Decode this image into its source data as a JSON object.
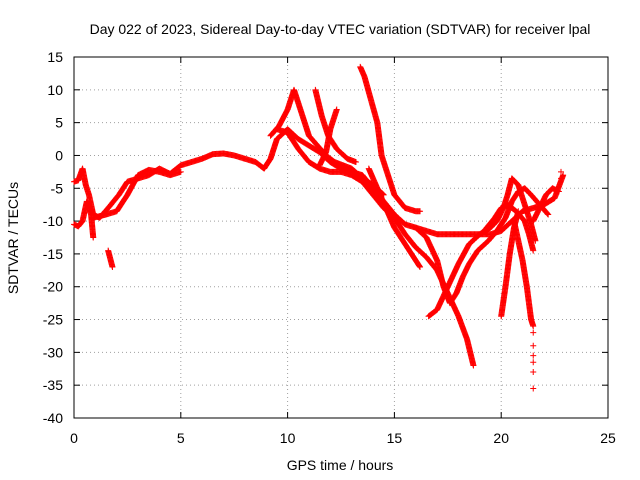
{
  "chart_data": {
    "type": "scatter",
    "title": "Day 022 of 2023, Sidereal Day-to-day VTEC variation (SDTVAR) for receiver lpal",
    "xlabel": "GPS time / hours",
    "ylabel": "SDTVAR / TECUs",
    "xlim": [
      0,
      25
    ],
    "ylim": [
      -40,
      15
    ],
    "xticks": [
      0,
      5,
      10,
      15,
      20,
      25
    ],
    "yticks": [
      -40,
      -35,
      -30,
      -25,
      -20,
      -15,
      -10,
      -5,
      0,
      5,
      10,
      15
    ],
    "grid": true,
    "marker": "+",
    "color": "#ff0000",
    "series": [
      {
        "tracks": [
          [
            [
              0.0,
              -4.0
            ],
            [
              0.2,
              -3.8
            ],
            [
              0.4,
              -2.0
            ],
            [
              0.55,
              -4.5
            ],
            [
              0.7,
              -6.0
            ],
            [
              0.9,
              -9.0
            ],
            [
              1.2,
              -9.5
            ],
            [
              1.6,
              -8.0
            ],
            [
              2.1,
              -6.0
            ],
            [
              2.5,
              -4.0
            ],
            [
              3.0,
              -3.5
            ],
            [
              3.5,
              -3.0
            ],
            [
              4.0,
              -2.0
            ],
            [
              4.5,
              -2.8
            ],
            [
              5.0,
              -1.5
            ],
            [
              5.5,
              -1.0
            ],
            [
              6.0,
              -0.5
            ],
            [
              6.5,
              0.2
            ],
            [
              7.0,
              0.3
            ],
            [
              7.5,
              0.0
            ],
            [
              8.0,
              -0.5
            ],
            [
              8.5,
              -1.0
            ],
            [
              8.9,
              -2.0
            ],
            [
              9.2,
              -0.5
            ],
            [
              9.5,
              2.5
            ],
            [
              10.0,
              4.0
            ],
            [
              10.5,
              2.5
            ],
            [
              11.0,
              1.5
            ],
            [
              11.5,
              0.5
            ],
            [
              12.0,
              -1.0
            ],
            [
              12.5,
              -2.0
            ],
            [
              13.0,
              -2.5
            ],
            [
              13.5,
              -3.0
            ],
            [
              14.0,
              -5.0
            ],
            [
              14.5,
              -7.0
            ],
            [
              15.0,
              -9.0
            ],
            [
              15.5,
              -10.5
            ],
            [
              16.0,
              -11.0
            ],
            [
              16.5,
              -11.5
            ],
            [
              17.0,
              -12.0
            ],
            [
              17.5,
              -12.0
            ],
            [
              18.0,
              -12.0
            ],
            [
              18.5,
              -12.0
            ],
            [
              19.0,
              -12.0
            ],
            [
              19.5,
              -12.0
            ],
            [
              20.0,
              -11.5
            ],
            [
              20.5,
              -10.0
            ],
            [
              21.0,
              -8.5
            ],
            [
              21.5,
              -8.0
            ],
            [
              22.0,
              -7.5
            ],
            [
              22.5,
              -6.5
            ],
            [
              22.9,
              -3.0
            ]
          ]
        ]
      },
      {
        "tracks": [
          [
            [
              0.0,
              -10.5
            ],
            [
              0.2,
              -10.8
            ],
            [
              0.4,
              -10.0
            ],
            [
              0.6,
              -7.0
            ],
            [
              0.8,
              -9.0
            ],
            [
              0.9,
              -12.5
            ]
          ],
          [
            [
              1.6,
              -14.5
            ],
            [
              1.8,
              -17.0
            ]
          ],
          [
            [
              0.9,
              -9.5
            ],
            [
              1.5,
              -9.0
            ],
            [
              2.0,
              -8.5
            ],
            [
              2.5,
              -6.0
            ],
            [
              3.0,
              -3.0
            ],
            [
              3.5,
              -2.2
            ],
            [
              4.0,
              -2.5
            ],
            [
              4.5,
              -3.0
            ],
            [
              5.0,
              -2.5
            ]
          ],
          [
            [
              9.2,
              3.0
            ],
            [
              9.6,
              4.5
            ],
            [
              10.0,
              7.0
            ],
            [
              10.3,
              10.0
            ],
            [
              10.6,
              7.0
            ],
            [
              11.0,
              3.0
            ],
            [
              11.4,
              1.5
            ],
            [
              11.8,
              0.0
            ],
            [
              12.2,
              -1.0
            ],
            [
              12.6,
              -1.5
            ],
            [
              13.0,
              -2.0
            ],
            [
              13.5,
              -3.5
            ],
            [
              14.0,
              -4.5
            ],
            [
              14.5,
              -6.0
            ]
          ],
          [
            [
              9.5,
              4.0
            ],
            [
              10.0,
              3.5
            ],
            [
              10.5,
              1.0
            ],
            [
              11.0,
              -1.0
            ],
            [
              11.5,
              -2.0
            ],
            [
              12.0,
              -2.5
            ],
            [
              12.5,
              -2.5
            ],
            [
              13.0,
              -3.0
            ],
            [
              13.5,
              -4.0
            ],
            [
              14.0,
              -6.0
            ],
            [
              14.5,
              -8.0
            ],
            [
              15.0,
              -9.5
            ],
            [
              15.5,
              -12.0
            ],
            [
              16.0,
              -14.0
            ],
            [
              16.5,
              -15.5
            ],
            [
              17.0,
              -17.5
            ],
            [
              17.5,
              -21.0
            ],
            [
              18.0,
              -24.5
            ],
            [
              18.4,
              -28.0
            ],
            [
              18.7,
              -32.0
            ]
          ],
          [
            [
              11.3,
              10.0
            ],
            [
              11.6,
              6.0
            ],
            [
              11.9,
              3.0
            ],
            [
              12.3,
              1.0
            ],
            [
              12.8,
              -0.5
            ],
            [
              13.2,
              -1.0
            ]
          ],
          [
            [
              12.3,
              7.0
            ],
            [
              12.0,
              4.0
            ],
            [
              11.8,
              0.5
            ],
            [
              11.5,
              -1.5
            ]
          ],
          [
            [
              13.4,
              13.5
            ],
            [
              13.6,
              12.0
            ],
            [
              13.9,
              8.5
            ],
            [
              14.2,
              5.0
            ],
            [
              14.4,
              0.0
            ],
            [
              14.7,
              -3.0
            ],
            [
              15.0,
              -6.0
            ],
            [
              15.5,
              -8.0
            ],
            [
              16.0,
              -8.5
            ],
            [
              16.2,
              -8.5
            ]
          ],
          [
            [
              13.8,
              -2.0
            ],
            [
              14.2,
              -5.0
            ],
            [
              14.6,
              -8.0
            ],
            [
              15.0,
              -11.0
            ],
            [
              15.4,
              -13.0
            ],
            [
              15.8,
              -15.0
            ],
            [
              16.2,
              -17.0
            ]
          ],
          [
            [
              16.0,
              -11.0
            ],
            [
              16.5,
              -12.5
            ],
            [
              17.0,
              -16.0
            ],
            [
              17.3,
              -20.0
            ],
            [
              17.6,
              -22.5
            ],
            [
              17.9,
              -21.0
            ],
            [
              18.2,
              -18.5
            ],
            [
              18.5,
              -16.5
            ],
            [
              18.9,
              -14.5
            ],
            [
              19.4,
              -13.0
            ],
            [
              19.8,
              -11.5
            ],
            [
              20.2,
              -9.5
            ],
            [
              20.5,
              -7.0
            ],
            [
              20.8,
              -5.5
            ],
            [
              21.1,
              -5.0
            ],
            [
              21.4,
              -6.0
            ],
            [
              21.8,
              -7.5
            ],
            [
              22.2,
              -9.0
            ]
          ],
          [
            [
              16.6,
              -24.5
            ],
            [
              17.0,
              -23.5
            ],
            [
              17.5,
              -20.0
            ],
            [
              18.0,
              -16.5
            ],
            [
              18.5,
              -13.5
            ],
            [
              19.0,
              -12.0
            ],
            [
              19.5,
              -11.0
            ],
            [
              19.8,
              -10.0
            ],
            [
              20.1,
              -8.0
            ],
            [
              20.3,
              -6.0
            ],
            [
              20.5,
              -3.5
            ],
            [
              20.8,
              -4.5
            ],
            [
              21.0,
              -6.5
            ],
            [
              21.2,
              -8.5
            ],
            [
              21.4,
              -10.5
            ],
            [
              21.6,
              -13.0
            ]
          ],
          [
            [
              19.2,
              -11.5
            ],
            [
              19.7,
              -9.5
            ],
            [
              20.0,
              -8.0
            ],
            [
              20.3,
              -7.5
            ],
            [
              20.7,
              -8.5
            ],
            [
              21.1,
              -10.0
            ],
            [
              21.3,
              -12.0
            ],
            [
              21.5,
              -14.5
            ]
          ],
          [
            [
              20.0,
              -24.5
            ],
            [
              20.2,
              -20.0
            ],
            [
              20.4,
              -15.0
            ],
            [
              20.6,
              -11.0
            ],
            [
              20.8,
              -8.5
            ]
          ],
          [
            [
              20.6,
              -10.0
            ],
            [
              20.8,
              -13.0
            ],
            [
              21.0,
              -16.0
            ],
            [
              21.2,
              -20.0
            ],
            [
              21.4,
              -25.0
            ],
            [
              21.5,
              -26.0
            ]
          ],
          [
            [
              21.5,
              -10.0
            ],
            [
              21.8,
              -8.0
            ],
            [
              22.1,
              -6.0
            ],
            [
              22.4,
              -5.0
            ],
            [
              22.7,
              -5.5
            ]
          ]
        ]
      },
      {
        "tracks": [],
        "points": [
          [
            21.5,
            -27.0
          ],
          [
            21.5,
            -29.0
          ],
          [
            21.5,
            -30.5
          ],
          [
            21.5,
            -31.5
          ],
          [
            21.5,
            -33.0
          ],
          [
            21.5,
            -35.5
          ],
          [
            22.8,
            -2.5
          ],
          [
            22.8,
            -3.5
          ]
        ]
      }
    ]
  }
}
